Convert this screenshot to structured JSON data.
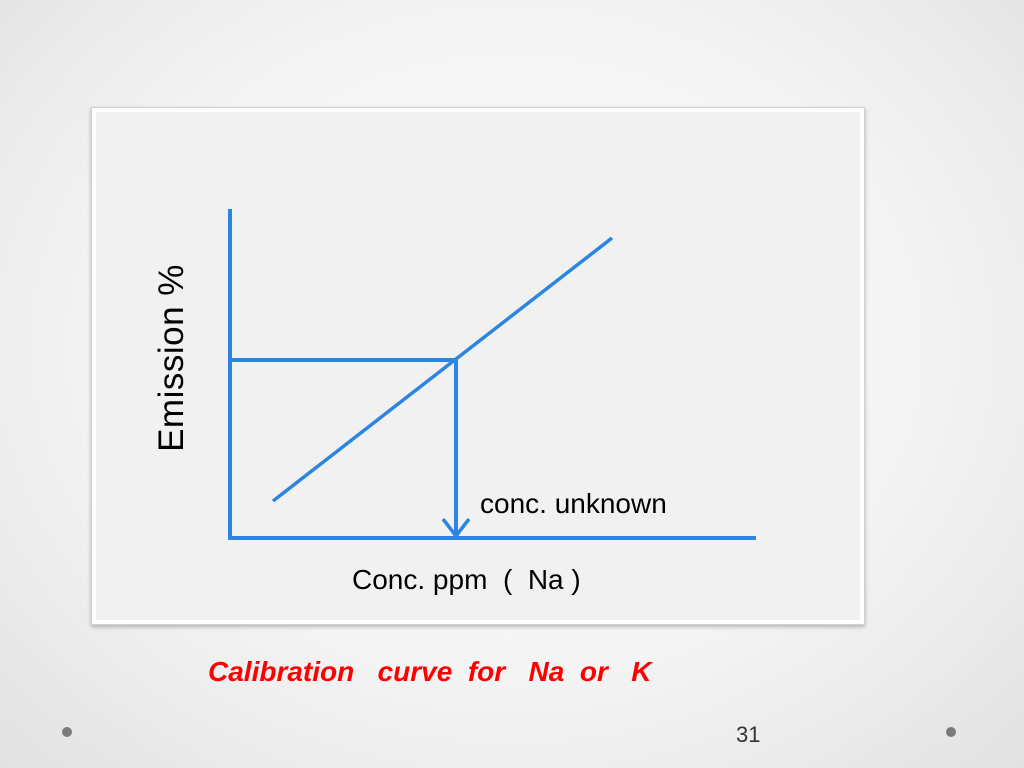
{
  "diagram": {
    "y_axis_label": "Emission %",
    "x_axis_label": "Conc. ppm  (  Na )",
    "unknown_label": "conc. unknown",
    "colors": {
      "line": "#2b86e0",
      "frame_background": "#f1f1f1"
    }
  },
  "caption": "Calibration   curve  for   Na  or   K",
  "page_number": "31",
  "decorations": {
    "left_bullet": "dot-icon",
    "right_bullet": "dot-icon"
  }
}
